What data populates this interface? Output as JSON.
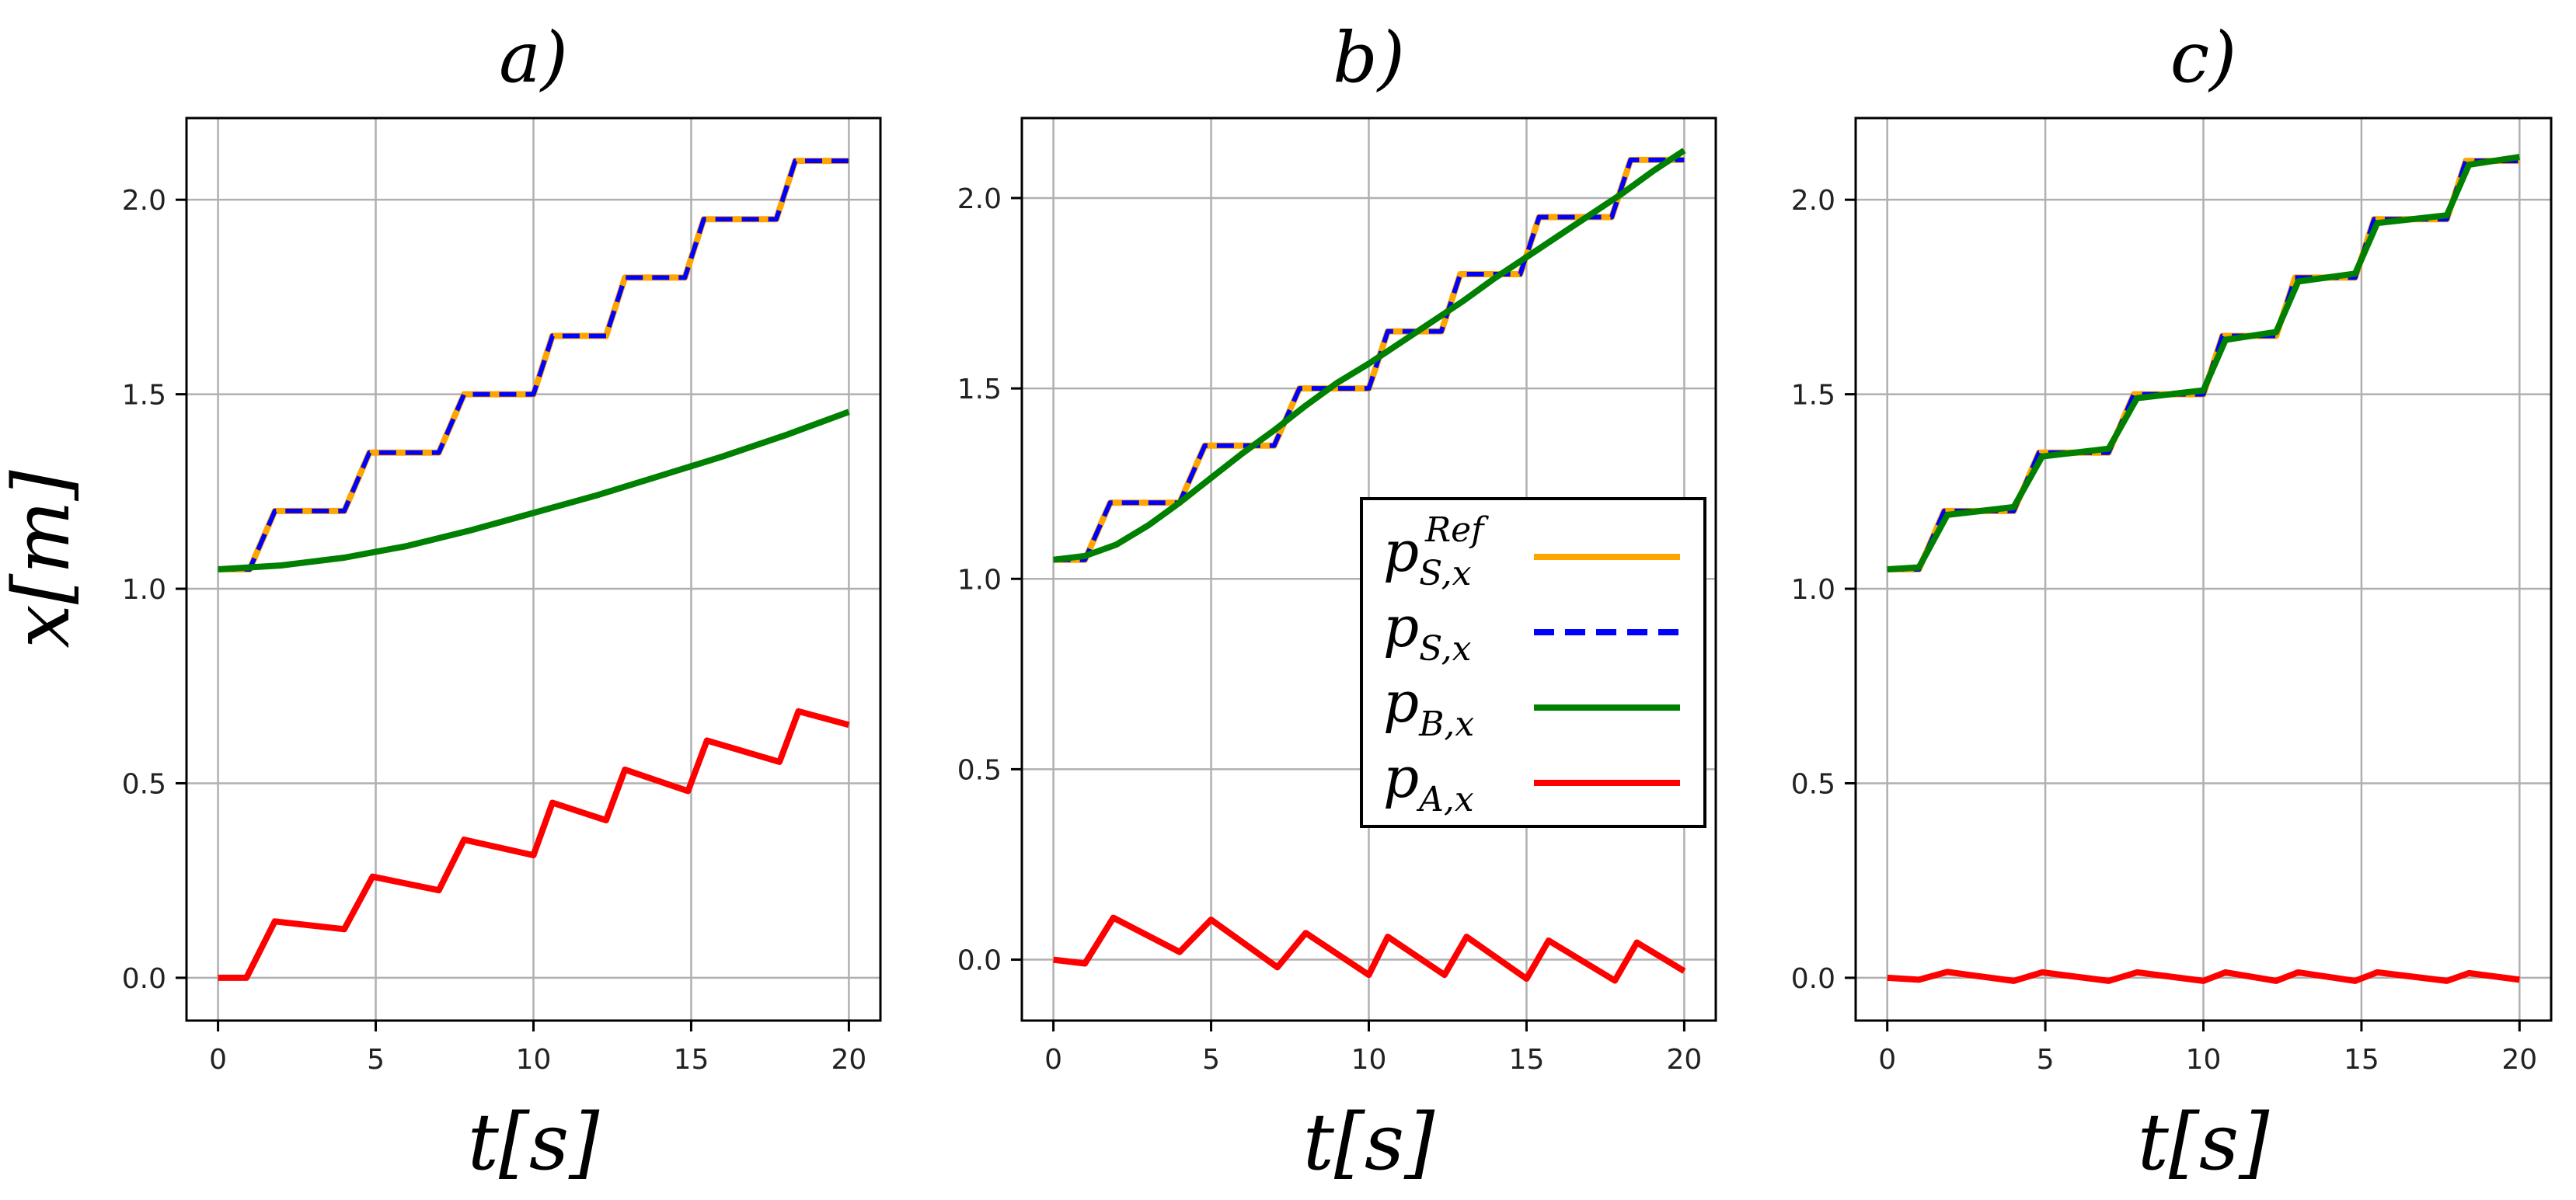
{
  "ylabel": "x[m]",
  "legend": {
    "entries": [
      {
        "label": "p",
        "sub": "S,x",
        "sup": "Ref",
        "color": "#FFA500",
        "style": "solid"
      },
      {
        "label": "p",
        "sub": "S,x",
        "sup": "",
        "color": "#0000FF",
        "style": "dashed"
      },
      {
        "label": "p",
        "sub": "B,x",
        "sup": "",
        "color": "#008000",
        "style": "solid"
      },
      {
        "label": "p",
        "sub": "A,x",
        "sup": "",
        "color": "#FF0000",
        "style": "solid"
      }
    ]
  },
  "chart_data": [
    {
      "type": "line",
      "title": "a)",
      "xlabel": "t[s]",
      "xlim": [
        -1,
        21
      ],
      "ylim": [
        -0.11,
        2.21
      ],
      "xticks": [
        0,
        5,
        10,
        15,
        20
      ],
      "xticklabels": [
        "0",
        "5",
        "10",
        "15",
        "20"
      ],
      "yticks": [
        0.0,
        0.5,
        1.0,
        1.5,
        2.0
      ],
      "yticklabels": [
        "0.0",
        "0.5",
        "1.0",
        "1.5",
        "2.0"
      ],
      "grid": true,
      "series": [
        {
          "name": "p_S,x^Ref",
          "color": "#FFA500",
          "style": "solid",
          "x": [
            0,
            1.0,
            1.8,
            4.0,
            4.8,
            7.0,
            7.8,
            10.0,
            10.6,
            12.3,
            12.9,
            14.8,
            15.4,
            17.7,
            18.3,
            20
          ],
          "y": [
            1.05,
            1.05,
            1.2,
            1.2,
            1.35,
            1.35,
            1.5,
            1.5,
            1.65,
            1.65,
            1.8,
            1.8,
            1.95,
            1.95,
            2.1,
            2.1
          ]
        },
        {
          "name": "p_S,x",
          "color": "#0000FF",
          "style": "dashed",
          "x": [
            0,
            1.0,
            1.8,
            4.0,
            4.8,
            7.0,
            7.8,
            10.0,
            10.6,
            12.3,
            12.9,
            14.8,
            15.4,
            17.7,
            18.3,
            20
          ],
          "y": [
            1.05,
            1.05,
            1.2,
            1.2,
            1.35,
            1.35,
            1.5,
            1.5,
            1.65,
            1.65,
            1.8,
            1.8,
            1.95,
            1.95,
            2.1,
            2.1
          ]
        },
        {
          "name": "p_B,x",
          "color": "#008000",
          "style": "solid",
          "x": [
            0,
            2,
            4,
            6,
            8,
            10,
            12,
            14,
            16,
            18,
            20
          ],
          "y": [
            1.05,
            1.06,
            1.08,
            1.11,
            1.15,
            1.195,
            1.24,
            1.29,
            1.34,
            1.395,
            1.455
          ]
        },
        {
          "name": "p_A,x",
          "color": "#FF0000",
          "style": "solid",
          "x": [
            0,
            0.9,
            1.8,
            4.0,
            4.9,
            7.0,
            7.8,
            10.0,
            10.6,
            12.3,
            12.9,
            14.9,
            15.5,
            17.8,
            18.4,
            20
          ],
          "y": [
            0.0,
            0.0,
            0.145,
            0.125,
            0.26,
            0.225,
            0.355,
            0.315,
            0.45,
            0.405,
            0.535,
            0.48,
            0.61,
            0.555,
            0.685,
            0.65
          ]
        }
      ]
    },
    {
      "type": "line",
      "title": "b)",
      "xlabel": "t[s]",
      "xlim": [
        -1,
        21
      ],
      "ylim": [
        -0.16,
        2.21
      ],
      "xticks": [
        0,
        5,
        10,
        15,
        20
      ],
      "xticklabels": [
        "0",
        "5",
        "10",
        "15",
        "20"
      ],
      "yticks": [
        0.0,
        0.5,
        1.0,
        1.5,
        2.0
      ],
      "yticklabels": [
        "0.0",
        "0.5",
        "1.0",
        "1.5",
        "2.0"
      ],
      "grid": true,
      "series": [
        {
          "name": "p_S,x^Ref",
          "color": "#FFA500",
          "style": "solid",
          "x": [
            0,
            1.0,
            1.8,
            4.0,
            4.8,
            7.0,
            7.8,
            10.0,
            10.6,
            12.3,
            12.9,
            14.8,
            15.4,
            17.7,
            18.3,
            20
          ],
          "y": [
            1.05,
            1.05,
            1.2,
            1.2,
            1.35,
            1.35,
            1.5,
            1.5,
            1.65,
            1.65,
            1.8,
            1.8,
            1.95,
            1.95,
            2.1,
            2.1
          ]
        },
        {
          "name": "p_S,x",
          "color": "#0000FF",
          "style": "dashed",
          "x": [
            0,
            1.0,
            1.8,
            4.0,
            4.8,
            7.0,
            7.8,
            10.0,
            10.6,
            12.3,
            12.9,
            14.8,
            15.4,
            17.7,
            18.3,
            20
          ],
          "y": [
            1.05,
            1.05,
            1.2,
            1.2,
            1.35,
            1.35,
            1.5,
            1.5,
            1.65,
            1.65,
            1.8,
            1.8,
            1.95,
            1.95,
            2.1,
            2.1
          ]
        },
        {
          "name": "p_B,x",
          "color": "#008000",
          "style": "solid",
          "x": [
            0,
            1,
            2,
            3,
            4,
            5,
            6,
            7,
            8,
            9,
            10,
            11,
            12,
            13,
            14,
            15,
            16,
            17,
            18,
            19,
            20
          ],
          "y": [
            1.05,
            1.06,
            1.09,
            1.14,
            1.2,
            1.265,
            1.33,
            1.39,
            1.455,
            1.515,
            1.565,
            1.62,
            1.675,
            1.73,
            1.79,
            1.845,
            1.9,
            1.955,
            2.01,
            2.07,
            2.125
          ]
        },
        {
          "name": "p_A,x",
          "color": "#FF0000",
          "style": "solid",
          "x": [
            0,
            1.0,
            1.9,
            4.0,
            5.0,
            7.1,
            8.0,
            10.0,
            10.6,
            12.4,
            13.1,
            15.0,
            15.7,
            17.8,
            18.5,
            20
          ],
          "y": [
            0.0,
            -0.01,
            0.11,
            0.02,
            0.105,
            -0.02,
            0.07,
            -0.04,
            0.06,
            -0.04,
            0.06,
            -0.05,
            0.05,
            -0.055,
            0.045,
            -0.03
          ]
        }
      ]
    },
    {
      "type": "line",
      "title": "c)",
      "xlabel": "t[s]",
      "xlim": [
        -1,
        21
      ],
      "ylim": [
        -0.11,
        2.21
      ],
      "xticks": [
        0,
        5,
        10,
        15,
        20
      ],
      "xticklabels": [
        "0",
        "5",
        "10",
        "15",
        "20"
      ],
      "yticks": [
        0.0,
        0.5,
        1.0,
        1.5,
        2.0
      ],
      "yticklabels": [
        "0.0",
        "0.5",
        "1.0",
        "1.5",
        "2.0"
      ],
      "grid": true,
      "series": [
        {
          "name": "p_S,x^Ref",
          "color": "#FFA500",
          "style": "solid",
          "x": [
            0,
            1.0,
            1.8,
            4.0,
            4.8,
            7.0,
            7.8,
            10.0,
            10.6,
            12.3,
            12.9,
            14.8,
            15.4,
            17.7,
            18.3,
            20
          ],
          "y": [
            1.05,
            1.05,
            1.2,
            1.2,
            1.35,
            1.35,
            1.5,
            1.5,
            1.65,
            1.65,
            1.8,
            1.8,
            1.95,
            1.95,
            2.1,
            2.1
          ]
        },
        {
          "name": "p_S,x",
          "color": "#0000FF",
          "style": "dashed",
          "x": [
            0,
            1.0,
            1.8,
            4.0,
            4.8,
            7.0,
            7.8,
            10.0,
            10.6,
            12.3,
            12.9,
            14.8,
            15.4,
            17.7,
            18.3,
            20
          ],
          "y": [
            1.05,
            1.05,
            1.2,
            1.2,
            1.35,
            1.35,
            1.5,
            1.5,
            1.65,
            1.65,
            1.8,
            1.8,
            1.95,
            1.95,
            2.1,
            2.1
          ]
        },
        {
          "name": "p_B,x",
          "color": "#008000",
          "style": "solid",
          "x": [
            0,
            1.0,
            1.9,
            4.0,
            4.9,
            7.0,
            7.9,
            10.0,
            10.7,
            12.3,
            13.0,
            14.8,
            15.5,
            17.7,
            18.4,
            20
          ],
          "y": [
            1.05,
            1.055,
            1.19,
            1.21,
            1.34,
            1.36,
            1.49,
            1.51,
            1.64,
            1.66,
            1.79,
            1.81,
            1.94,
            1.96,
            2.09,
            2.11
          ]
        },
        {
          "name": "p_A,x",
          "color": "#FF0000",
          "style": "solid",
          "x": [
            0,
            1.0,
            1.9,
            4.0,
            4.9,
            7.0,
            7.9,
            10.0,
            10.7,
            12.3,
            13.0,
            14.8,
            15.5,
            17.7,
            18.4,
            20
          ],
          "y": [
            0.0,
            -0.005,
            0.015,
            -0.008,
            0.014,
            -0.008,
            0.014,
            -0.008,
            0.014,
            -0.008,
            0.014,
            -0.008,
            0.014,
            -0.008,
            0.012,
            -0.005
          ]
        }
      ]
    }
  ]
}
